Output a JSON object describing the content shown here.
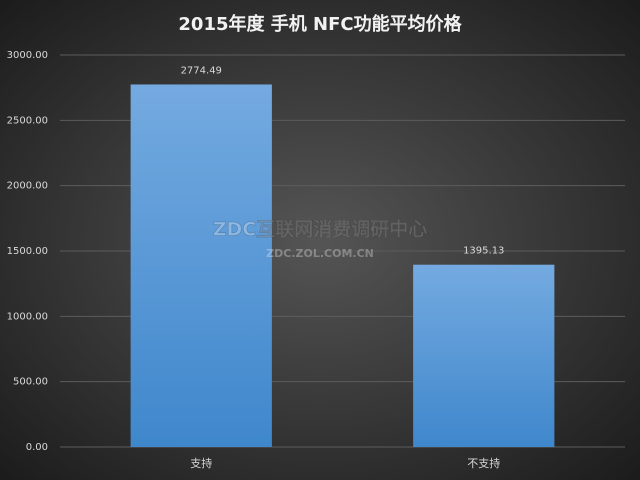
{
  "chart_data": {
    "type": "bar",
    "title": "2015年度 手机 NFC功能平均价格",
    "categories": [
      "支持",
      "不支持"
    ],
    "values": [
      2774.49,
      1395.13
    ],
    "color": "#5b9bd5",
    "ylim": [
      0,
      3000
    ],
    "yticks": [
      {
        "value": 0,
        "label": "0.00"
      },
      {
        "value": 500,
        "label": "500.00"
      },
      {
        "value": 1000,
        "label": "1000.00"
      },
      {
        "value": 1500,
        "label": "1500.00"
      },
      {
        "value": 2000,
        "label": "2000.00"
      },
      {
        "value": 2500,
        "label": "2500.00"
      },
      {
        "value": 3000,
        "label": "3000.00"
      }
    ],
    "grid": true,
    "annotations": [
      "ZDC互联网消费调研中心",
      "ZDC.ZOL.COM.CN"
    ]
  }
}
